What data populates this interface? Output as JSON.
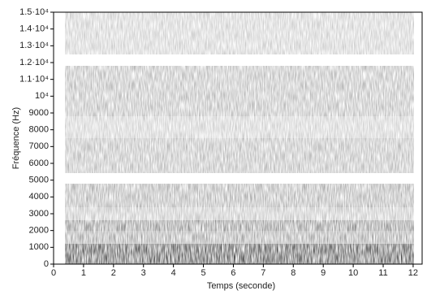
{
  "chart_data": {
    "type": "spectrogram",
    "xlabel": "Temps (seconde)",
    "ylabel": "Fréquence (Hz)",
    "xlim": [
      0,
      12.3
    ],
    "xticks": [
      0,
      1,
      2,
      3,
      4,
      5,
      6,
      7,
      8,
      9,
      10,
      11,
      12
    ],
    "ylim": [
      0,
      15000
    ],
    "yticks": [
      0,
      1000,
      2000,
      3000,
      4000,
      5000,
      6000,
      7000,
      8000,
      9000,
      {
        "value": 10000,
        "label": "10⁴"
      },
      {
        "value": 11000,
        "label": "1.1·10⁴"
      },
      {
        "value": 12000,
        "label": "1.2·10⁴"
      },
      {
        "value": 13000,
        "label": "1.3·10⁴"
      },
      {
        "value": 14000,
        "label": "1.4·10⁴"
      },
      {
        "value": 15000,
        "label": "1.5·10⁴"
      }
    ]
  }
}
